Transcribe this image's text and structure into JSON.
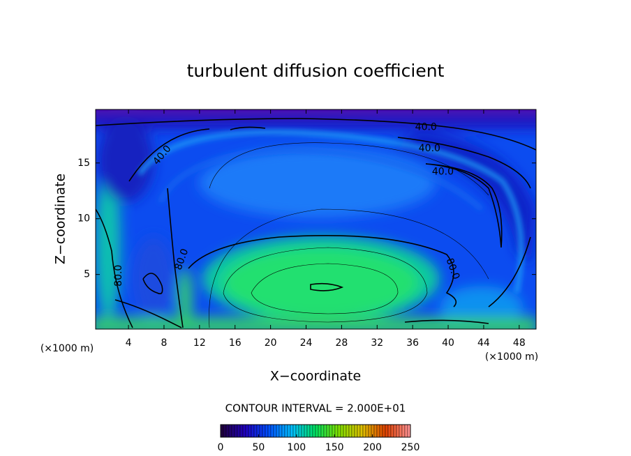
{
  "chart_data": {
    "type": "contour",
    "title": "turbulent diffusion coefficient",
    "xlabel": "X−coordinate",
    "ylabel": "Z−coordinate",
    "x_unit": "(×1000 m)",
    "x_unit_right": "(×1000 m)",
    "xlim": [
      0.3,
      49.9
    ],
    "ylim": [
      0.1,
      19.8
    ],
    "xticks": [
      4,
      8,
      12,
      16,
      20,
      24,
      28,
      32,
      36,
      40,
      44,
      48
    ],
    "yticks": [
      5,
      10,
      15
    ],
    "contour_labels": [
      {
        "x": 37.5,
        "y": 18.2,
        "value": 40,
        "label": "40.0"
      },
      {
        "x": 37.9,
        "y": 16.3,
        "value": 40,
        "label": "40.0"
      },
      {
        "x": 39.4,
        "y": 14.2,
        "value": 40,
        "label": "40.0"
      },
      {
        "x": 7.8,
        "y": 15.7,
        "value": 40,
        "label": "40.0"
      },
      {
        "x": 10.0,
        "y": 6.35,
        "value": 80,
        "label": "80.0"
      },
      {
        "x": 40.5,
        "y": 5.5,
        "value": 80,
        "label": "80.0"
      },
      {
        "x": 2.9,
        "y": 4.9,
        "value": 80,
        "label": "80.0"
      }
    ],
    "contour_interval": "CONTOUR INTERVAL = 2.000E+01",
    "colorbar": {
      "lim": [
        0,
        250
      ],
      "ticks": [
        0,
        50,
        100,
        150,
        200,
        250
      ],
      "colors": [
        "#200040",
        "#2000c0",
        "#0050ff",
        "#00c0ff",
        "#00e060",
        "#80e000",
        "#e0c000",
        "#e04000",
        "#ff9090"
      ]
    }
  }
}
